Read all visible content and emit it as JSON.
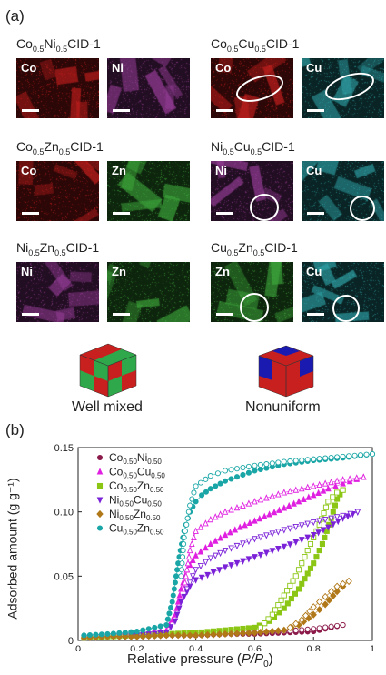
{
  "panel_a": {
    "label": "(a)",
    "samples": [
      {
        "el1": "Co",
        "s1": "0.5",
        "el2": "Ni",
        "s2": "0.5",
        "suffix": "CID-1",
        "map1": "Co",
        "map2": "Ni"
      },
      {
        "el1": "Co",
        "s1": "0.5",
        "el2": "Cu",
        "s2": "0.5",
        "suffix": "CID-1",
        "map1": "Co",
        "map2": "Cu"
      },
      {
        "el1": "Co",
        "s1": "0.5",
        "el2": "Zn",
        "s2": "0.5",
        "suffix": "CID-1",
        "map1": "Co",
        "map2": "Zn"
      },
      {
        "el1": "Ni",
        "s1": "0.5",
        "el2": "Cu",
        "s2": "0.5",
        "suffix": "CID-1",
        "map1": "Ni",
        "map2": "Cu"
      },
      {
        "el1": "Ni",
        "s1": "0.5",
        "el2": "Zn",
        "s2": "0.5",
        "suffix": "CID-1",
        "map1": "Ni",
        "map2": "Zn"
      },
      {
        "el1": "Cu",
        "s1": "0.5",
        "el2": "Zn",
        "s2": "0.5",
        "suffix": "CID-1",
        "map1": "Zn",
        "map2": "Cu"
      }
    ],
    "cube_well_mixed": "Well mixed",
    "cube_nonuniform": "Nonuniform",
    "colors": {
      "Co": "#c8201e",
      "Ni": "#9b3f9c",
      "Cu": "#2fa3a8",
      "Zn": "#3ea83c"
    }
  },
  "panel_b": {
    "label": "(b)",
    "ylabel": "Adsorbed amount (g g⁻¹)",
    "xlabel_prefix": "Relative pressure (",
    "xlabel_var": "P/P",
    "xlabel_sub": "0",
    "xlabel_suffix": ")"
  },
  "chart_data": {
    "type": "scatter",
    "xlabel": "Relative pressure (P/P0)",
    "ylabel": "Adsorbed amount (g g-1)",
    "xlim": [
      0,
      1.0
    ],
    "ylim": [
      0,
      0.15
    ],
    "xticks": [
      "0",
      "0.2",
      "0.4",
      "0.6",
      "0.8",
      "1"
    ],
    "yticks": [
      "0",
      "0.05",
      "0.10",
      "0.15"
    ],
    "legend_position": "top-left",
    "series": [
      {
        "name": "Co0.50Ni0.50",
        "label_parts": [
          "Co",
          "0.50",
          "Ni",
          "0.50"
        ],
        "color": "#8b1a4a",
        "marker": "circle",
        "adsorption": [
          [
            0.02,
            0.002
          ],
          [
            0.1,
            0.003
          ],
          [
            0.2,
            0.003
          ],
          [
            0.3,
            0.004
          ],
          [
            0.4,
            0.004
          ],
          [
            0.5,
            0.005
          ],
          [
            0.6,
            0.005
          ],
          [
            0.7,
            0.006
          ],
          [
            0.8,
            0.007
          ],
          [
            0.9,
            0.012
          ]
        ],
        "desorption": [
          [
            0.9,
            0.012
          ],
          [
            0.8,
            0.009
          ],
          [
            0.7,
            0.007
          ],
          [
            0.6,
            0.006
          ],
          [
            0.5,
            0.005
          ],
          [
            0.4,
            0.004
          ]
        ]
      },
      {
        "name": "Co0.50Cu0.50",
        "label_parts": [
          "Co",
          "0.50",
          "Cu",
          "0.50"
        ],
        "color": "#e020e0",
        "marker": "triangle-up",
        "adsorption": [
          [
            0.02,
            0.003
          ],
          [
            0.1,
            0.004
          ],
          [
            0.2,
            0.005
          ],
          [
            0.3,
            0.008
          ],
          [
            0.33,
            0.02
          ],
          [
            0.35,
            0.04
          ],
          [
            0.37,
            0.055
          ],
          [
            0.4,
            0.066
          ],
          [
            0.45,
            0.075
          ],
          [
            0.5,
            0.082
          ],
          [
            0.55,
            0.088
          ],
          [
            0.6,
            0.093
          ],
          [
            0.65,
            0.098
          ],
          [
            0.7,
            0.103
          ],
          [
            0.75,
            0.108
          ],
          [
            0.8,
            0.113
          ],
          [
            0.85,
            0.118
          ],
          [
            0.9,
            0.122
          ],
          [
            0.97,
            0.127
          ]
        ],
        "desorption": [
          [
            0.97,
            0.127
          ],
          [
            0.9,
            0.125
          ],
          [
            0.8,
            0.12
          ],
          [
            0.7,
            0.115
          ],
          [
            0.6,
            0.108
          ],
          [
            0.5,
            0.1
          ],
          [
            0.45,
            0.094
          ],
          [
            0.4,
            0.085
          ],
          [
            0.38,
            0.07
          ],
          [
            0.36,
            0.04
          ]
        ]
      },
      {
        "name": "Co0.50Zn0.50",
        "label_parts": [
          "Co",
          "0.50",
          "Zn",
          "0.50"
        ],
        "color": "#8cc614",
        "marker": "square",
        "adsorption": [
          [
            0.02,
            0.002
          ],
          [
            0.1,
            0.003
          ],
          [
            0.2,
            0.004
          ],
          [
            0.3,
            0.005
          ],
          [
            0.4,
            0.006
          ],
          [
            0.5,
            0.008
          ],
          [
            0.6,
            0.01
          ],
          [
            0.65,
            0.015
          ],
          [
            0.7,
            0.025
          ],
          [
            0.75,
            0.04
          ],
          [
            0.8,
            0.06
          ],
          [
            0.83,
            0.075
          ],
          [
            0.86,
            0.095
          ],
          [
            0.88,
            0.11
          ],
          [
            0.9,
            0.117
          ]
        ],
        "desorption": [
          [
            0.9,
            0.117
          ],
          [
            0.88,
            0.115
          ],
          [
            0.85,
            0.108
          ],
          [
            0.82,
            0.09
          ],
          [
            0.78,
            0.07
          ],
          [
            0.74,
            0.05
          ],
          [
            0.7,
            0.035
          ],
          [
            0.66,
            0.02
          ],
          [
            0.62,
            0.01
          ]
        ]
      },
      {
        "name": "Ni0.50Cu0.50",
        "label_parts": [
          "Ni",
          "0.50",
          "Cu",
          "0.50"
        ],
        "color": "#7b22d8",
        "marker": "triangle-down",
        "adsorption": [
          [
            0.02,
            0.002
          ],
          [
            0.1,
            0.003
          ],
          [
            0.2,
            0.004
          ],
          [
            0.3,
            0.006
          ],
          [
            0.33,
            0.015
          ],
          [
            0.35,
            0.03
          ],
          [
            0.38,
            0.042
          ],
          [
            0.4,
            0.047
          ],
          [
            0.5,
            0.057
          ],
          [
            0.6,
            0.065
          ],
          [
            0.7,
            0.073
          ],
          [
            0.8,
            0.082
          ],
          [
            0.85,
            0.088
          ],
          [
            0.9,
            0.095
          ],
          [
            0.95,
            0.1
          ]
        ],
        "desorption": [
          [
            0.95,
            0.1
          ],
          [
            0.9,
            0.097
          ],
          [
            0.8,
            0.092
          ],
          [
            0.7,
            0.086
          ],
          [
            0.6,
            0.079
          ],
          [
            0.5,
            0.07
          ],
          [
            0.45,
            0.064
          ],
          [
            0.4,
            0.055
          ],
          [
            0.37,
            0.04
          ]
        ]
      },
      {
        "name": "Ni0.50Zn0.50",
        "label_parts": [
          "Ni",
          "0.50",
          "Zn",
          "0.50"
        ],
        "color": "#b07818",
        "marker": "diamond",
        "adsorption": [
          [
            0.02,
            0.002
          ],
          [
            0.1,
            0.003
          ],
          [
            0.2,
            0.003
          ],
          [
            0.3,
            0.004
          ],
          [
            0.4,
            0.004
          ],
          [
            0.5,
            0.005
          ],
          [
            0.6,
            0.006
          ],
          [
            0.7,
            0.008
          ],
          [
            0.75,
            0.012
          ],
          [
            0.8,
            0.02
          ],
          [
            0.84,
            0.028
          ],
          [
            0.88,
            0.038
          ],
          [
            0.92,
            0.046
          ]
        ],
        "desorption": [
          [
            0.92,
            0.046
          ],
          [
            0.88,
            0.042
          ],
          [
            0.84,
            0.034
          ],
          [
            0.8,
            0.026
          ],
          [
            0.76,
            0.016
          ],
          [
            0.72,
            0.01
          ]
        ]
      },
      {
        "name": "Cu0.50Zn0.50",
        "label_parts": [
          "Cu",
          "0.50",
          "Zn",
          "0.50"
        ],
        "color": "#1aa6a6",
        "marker": "circle",
        "adsorption": [
          [
            0.02,
            0.004
          ],
          [
            0.1,
            0.005
          ],
          [
            0.2,
            0.007
          ],
          [
            0.3,
            0.012
          ],
          [
            0.32,
            0.03
          ],
          [
            0.34,
            0.06
          ],
          [
            0.36,
            0.085
          ],
          [
            0.38,
            0.1
          ],
          [
            0.4,
            0.108
          ],
          [
            0.42,
            0.113
          ],
          [
            0.45,
            0.118
          ],
          [
            0.5,
            0.124
          ],
          [
            0.6,
            0.132
          ],
          [
            0.7,
            0.137
          ],
          [
            0.8,
            0.14
          ],
          [
            0.9,
            0.142
          ],
          [
            1.0,
            0.145
          ]
        ],
        "desorption": [
          [
            1.0,
            0.145
          ],
          [
            0.9,
            0.143
          ],
          [
            0.8,
            0.141
          ],
          [
            0.7,
            0.139
          ],
          [
            0.6,
            0.136
          ],
          [
            0.5,
            0.132
          ],
          [
            0.45,
            0.128
          ],
          [
            0.4,
            0.12
          ],
          [
            0.38,
            0.105
          ],
          [
            0.36,
            0.08
          ],
          [
            0.35,
            0.05
          ]
        ]
      }
    ]
  }
}
